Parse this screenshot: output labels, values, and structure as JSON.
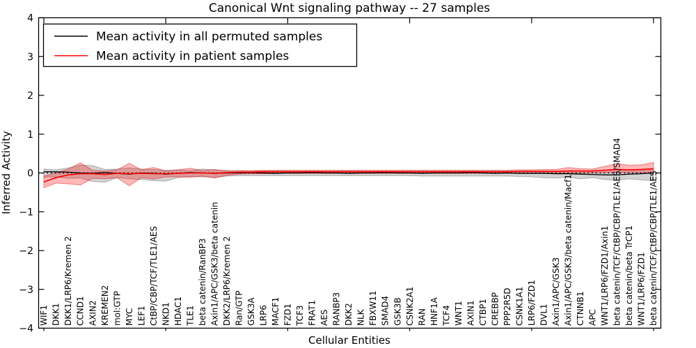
{
  "chart_data": {
    "type": "line",
    "title": "Canonical Wnt signaling pathway -- 27 samples",
    "xlabel": "Cellular Entities",
    "ylabel": "Inferred Activity",
    "ylim": [
      -4,
      4
    ],
    "yticks": [
      -4,
      -3,
      -2,
      -1,
      0,
      1,
      2,
      3,
      4
    ],
    "grid": false,
    "legend_position": "upper left",
    "zero_reference_line": true,
    "x_major_tick_indices": [
      0,
      10,
      20,
      30,
      40,
      50
    ],
    "categories": [
      "WIF1",
      "DKK1",
      "DKK1/LRP6/Kremen 2",
      "CCND1",
      "AXIN2",
      "KREMEN2",
      "mol:GTP",
      "MYC",
      "LEF1",
      "CtBP/CBP/TCF/TLE1/AES",
      "NKD1",
      "HDAC1",
      "TLE1",
      "beta catenin/RanBP3",
      "Axin1/APC/GSK3/beta catenin",
      "DKK2/LRP6/Kremen 2",
      "Ran/GTP",
      "GSK3A",
      "LRP6",
      "MACF1",
      "FZD1",
      "TCF3",
      "FRAT1",
      "AES",
      "RANBP3",
      "DKK2",
      "NLK",
      "FBXW11",
      "SMAD4",
      "GSK3B",
      "CSNK2A1",
      "RAN",
      "HNF1A",
      "TCF4",
      "WNT1",
      "AXIN1",
      "CTBP1",
      "CREBBP",
      "PPP2R5D",
      "CSNK1A1",
      "LRP6/FZD1",
      "DVL1",
      "Axin1/APC/GSK3",
      "Axin1/APC/GSK3/beta catenin/Macf1",
      "CTNNB1",
      "APC",
      "WNT1/LRP6/FZD1/Axin1",
      "beta catenin/TCF/CtBP/CBP/TLE1/AES/SMAD4",
      "beta catenin/beta TrCP1",
      "WNT1/LRP6/FZD1",
      "beta catenin/TCF/CtBP/CBP/TLE1/AES"
    ],
    "series": [
      {
        "name": "Mean activity in all permuted samples",
        "color": "#000000",
        "band_fill": "rgba(128,128,128,0.35)",
        "band_edge": "rgba(100,100,100,0.45)",
        "values": [
          0.03,
          0.03,
          0.02,
          0.0,
          -0.01,
          0.01,
          -0.01,
          -0.03,
          0.0,
          -0.01,
          -0.03,
          -0.01,
          0.01,
          0.0,
          -0.01,
          0.0,
          0.0,
          0.01,
          0.0,
          -0.01,
          0.0,
          0.0,
          0.01,
          0.0,
          0.0,
          -0.01,
          0.0,
          0.0,
          0.01,
          0.0,
          0.0,
          -0.01,
          0.0,
          0.0,
          0.0,
          0.01,
          0.0,
          -0.01,
          0.0,
          -0.01,
          -0.01,
          -0.01,
          -0.02,
          -0.02,
          -0.03,
          -0.04,
          -0.05,
          -0.05,
          -0.03,
          -0.02,
          0.0
        ],
        "band_upper": [
          0.1,
          0.08,
          0.13,
          0.2,
          0.19,
          0.09,
          0.1,
          0.13,
          0.1,
          0.09,
          0.07,
          0.08,
          0.06,
          0.1,
          0.08,
          0.06,
          0.05,
          0.05,
          0.05,
          0.05,
          0.05,
          0.05,
          0.05,
          0.05,
          0.05,
          0.05,
          0.05,
          0.05,
          0.05,
          0.05,
          0.05,
          0.05,
          0.05,
          0.05,
          0.05,
          0.05,
          0.05,
          0.05,
          0.05,
          0.05,
          0.05,
          0.05,
          0.05,
          0.06,
          0.06,
          0.05,
          0.07,
          0.08,
          0.07,
          0.07,
          0.09
        ],
        "band_lower": [
          -0.11,
          -0.1,
          -0.14,
          -0.13,
          -0.22,
          -0.24,
          -0.12,
          -0.15,
          -0.17,
          -0.2,
          -0.21,
          -0.12,
          -0.09,
          -0.1,
          -0.11,
          -0.08,
          -0.07,
          -0.07,
          -0.07,
          -0.07,
          -0.07,
          -0.07,
          -0.07,
          -0.07,
          -0.07,
          -0.07,
          -0.07,
          -0.07,
          -0.07,
          -0.07,
          -0.07,
          -0.08,
          -0.08,
          -0.08,
          -0.08,
          -0.08,
          -0.08,
          -0.08,
          -0.08,
          -0.09,
          -0.1,
          -0.12,
          -0.13,
          -0.11,
          -0.15,
          -0.12,
          -0.17,
          -0.19,
          -0.15,
          -0.18,
          -0.2
        ]
      },
      {
        "name": "Mean activity in patient samples",
        "color": "#ff0000",
        "band_fill": "rgba(255,0,0,0.28)",
        "band_edge": "rgba(220,0,0,0.45)",
        "values": [
          -0.23,
          -0.12,
          -0.05,
          -0.02,
          -0.02,
          -0.04,
          -0.01,
          -0.02,
          -0.01,
          -0.02,
          -0.02,
          -0.01,
          0.0,
          0.0,
          -0.01,
          0.01,
          0.02,
          0.02,
          0.03,
          0.03,
          0.03,
          0.03,
          0.03,
          0.03,
          0.03,
          0.03,
          0.03,
          0.03,
          0.03,
          0.03,
          0.03,
          0.03,
          0.03,
          0.03,
          0.03,
          0.03,
          0.03,
          0.03,
          0.03,
          0.04,
          0.04,
          0.04,
          0.04,
          0.05,
          0.05,
          0.05,
          0.07,
          0.09,
          0.08,
          0.09,
          0.11
        ],
        "band_upper": [
          -0.08,
          0.0,
          0.1,
          0.26,
          0.07,
          0.05,
          0.08,
          0.25,
          0.08,
          0.14,
          0.05,
          0.08,
          0.12,
          0.06,
          0.09,
          0.05,
          0.06,
          0.06,
          0.07,
          0.07,
          0.07,
          0.07,
          0.07,
          0.07,
          0.07,
          0.07,
          0.07,
          0.07,
          0.07,
          0.07,
          0.07,
          0.07,
          0.07,
          0.07,
          0.07,
          0.07,
          0.07,
          0.07,
          0.07,
          0.08,
          0.08,
          0.09,
          0.09,
          0.14,
          0.11,
          0.1,
          0.17,
          0.24,
          0.2,
          0.21,
          0.27
        ],
        "band_lower": [
          -0.38,
          -0.26,
          -0.28,
          -0.31,
          -0.14,
          -0.15,
          -0.12,
          -0.33,
          -0.12,
          -0.16,
          -0.1,
          -0.1,
          -0.11,
          -0.08,
          -0.13,
          -0.06,
          -0.03,
          -0.02,
          -0.02,
          -0.01,
          -0.01,
          -0.01,
          -0.01,
          -0.01,
          -0.01,
          -0.01,
          -0.01,
          -0.01,
          -0.01,
          -0.01,
          -0.01,
          -0.01,
          -0.01,
          -0.01,
          -0.01,
          -0.01,
          -0.01,
          -0.01,
          -0.01,
          -0.01,
          -0.01,
          -0.01,
          -0.01,
          0.0,
          0.0,
          0.0,
          0.01,
          0.02,
          0.01,
          0.01,
          0.02
        ]
      }
    ],
    "colors": {
      "frame": "#000000",
      "background": "#ffffff",
      "zero_line": "#000000"
    }
  }
}
